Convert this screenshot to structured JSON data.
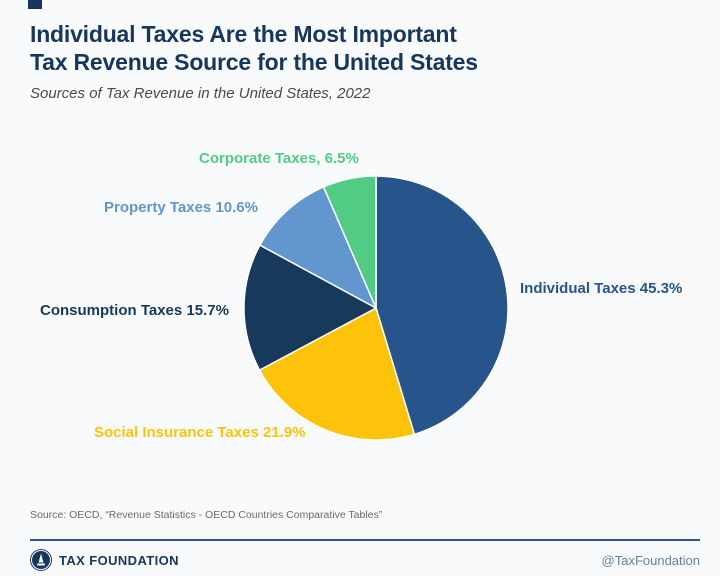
{
  "theme": {
    "accent": "#17365D",
    "background": "#F9FAFB",
    "subtitle_color": "#4A4A4A",
    "source_color": "#6A6A6A",
    "handle_color": "#64809B",
    "divider_color": "#2A5788"
  },
  "header": {
    "title_line1": "Individual Taxes Are the Most Important",
    "title_line2": "Tax Revenue Source for the United States",
    "subtitle": "Sources of Tax Revenue in the United States, 2022"
  },
  "chart_data": {
    "type": "pie",
    "title": "Sources of Tax Revenue in the United States, 2022",
    "start_angle_deg": 0,
    "direction": "clockwise",
    "legend_position": "labels-around-pie",
    "stroke": "#FFFFFF",
    "slices": [
      {
        "name": "Individual Taxes",
        "value": 45.3,
        "display": "Individual Taxes 45.3%",
        "color": "#27548A"
      },
      {
        "name": "Social Insurance Taxes",
        "value": 21.9,
        "display": "Social Insurance Taxes 21.9%",
        "color": "#FDC30B"
      },
      {
        "name": "Consumption Taxes",
        "value": 15.7,
        "display": "Consumption Taxes 15.7%",
        "color": "#17395C"
      },
      {
        "name": "Property Taxes",
        "value": 10.6,
        "display": "Property Taxes 10.6%",
        "color": "#6196CE"
      },
      {
        "name": "Corporate Taxes",
        "value": 6.5,
        "display": "Corporate Taxes, 6.5%",
        "color": "#52CC85"
      }
    ]
  },
  "footer": {
    "source": "Source: OECD, “Revenue Statistics - OECD Countries Comparative Tables”",
    "brand": "TAX FOUNDATION",
    "handle": "@TaxFoundation"
  }
}
